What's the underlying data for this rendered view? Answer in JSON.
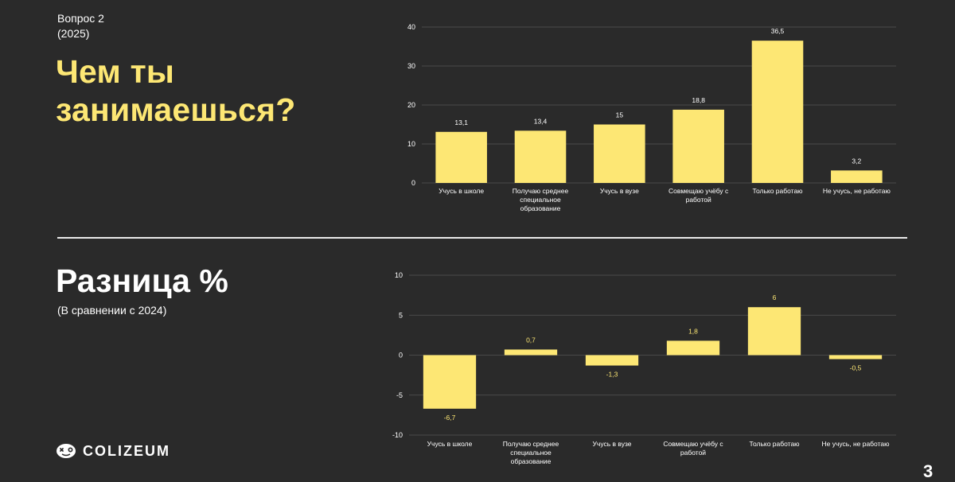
{
  "header": {
    "question": "Вопрос 2",
    "year": "(2025)",
    "title_line1": "Чем ты",
    "title_line2": "занимаешься?"
  },
  "section2": {
    "title": "Разница %",
    "subtitle": "(В сравнении с 2024)"
  },
  "logo": {
    "text": "COLIZEUM",
    "icon": "gamepad-icon"
  },
  "page_number": "3",
  "colors": {
    "background": "#2a2a2a",
    "accent": "#fde774",
    "grid": "#555555"
  },
  "chart_data": [
    {
      "type": "bar",
      "title": "",
      "categories": [
        [
          "Учусь в школе"
        ],
        [
          "Получаю среднее",
          "специальное",
          "образование"
        ],
        [
          "Учусь в вузе"
        ],
        [
          "Совмещаю учёбу с",
          "работой"
        ],
        [
          "Только работаю"
        ],
        [
          "Не учусь, не работаю"
        ]
      ],
      "values": [
        13.1,
        13.4,
        15,
        18.8,
        36.5,
        3.2
      ],
      "value_labels": [
        "13,1",
        "13,4",
        "15",
        "18,8",
        "36,5",
        "3,2"
      ],
      "yticks": [
        0,
        10,
        20,
        30,
        40
      ],
      "ylim": [
        0,
        40
      ],
      "grid": true,
      "bar_color": "#fde774"
    },
    {
      "type": "bar",
      "title": "",
      "categories": [
        [
          "Учусь в школе"
        ],
        [
          "Получаю среднее",
          "специальное",
          "образование"
        ],
        [
          "Учусь в вузе"
        ],
        [
          "Совмещаю учёбу с",
          "работой"
        ],
        [
          "Только работаю"
        ],
        [
          "Не учусь, не работаю"
        ]
      ],
      "values": [
        -6.7,
        0.7,
        -1.3,
        1.8,
        6,
        -0.5
      ],
      "value_labels": [
        "-6,7",
        "0,7",
        "-1,3",
        "1,8",
        "6",
        "-0,5"
      ],
      "yticks": [
        -10,
        -5,
        0,
        5,
        10
      ],
      "ylim": [
        -10,
        10
      ],
      "grid": true,
      "bar_color": "#fde774"
    }
  ]
}
